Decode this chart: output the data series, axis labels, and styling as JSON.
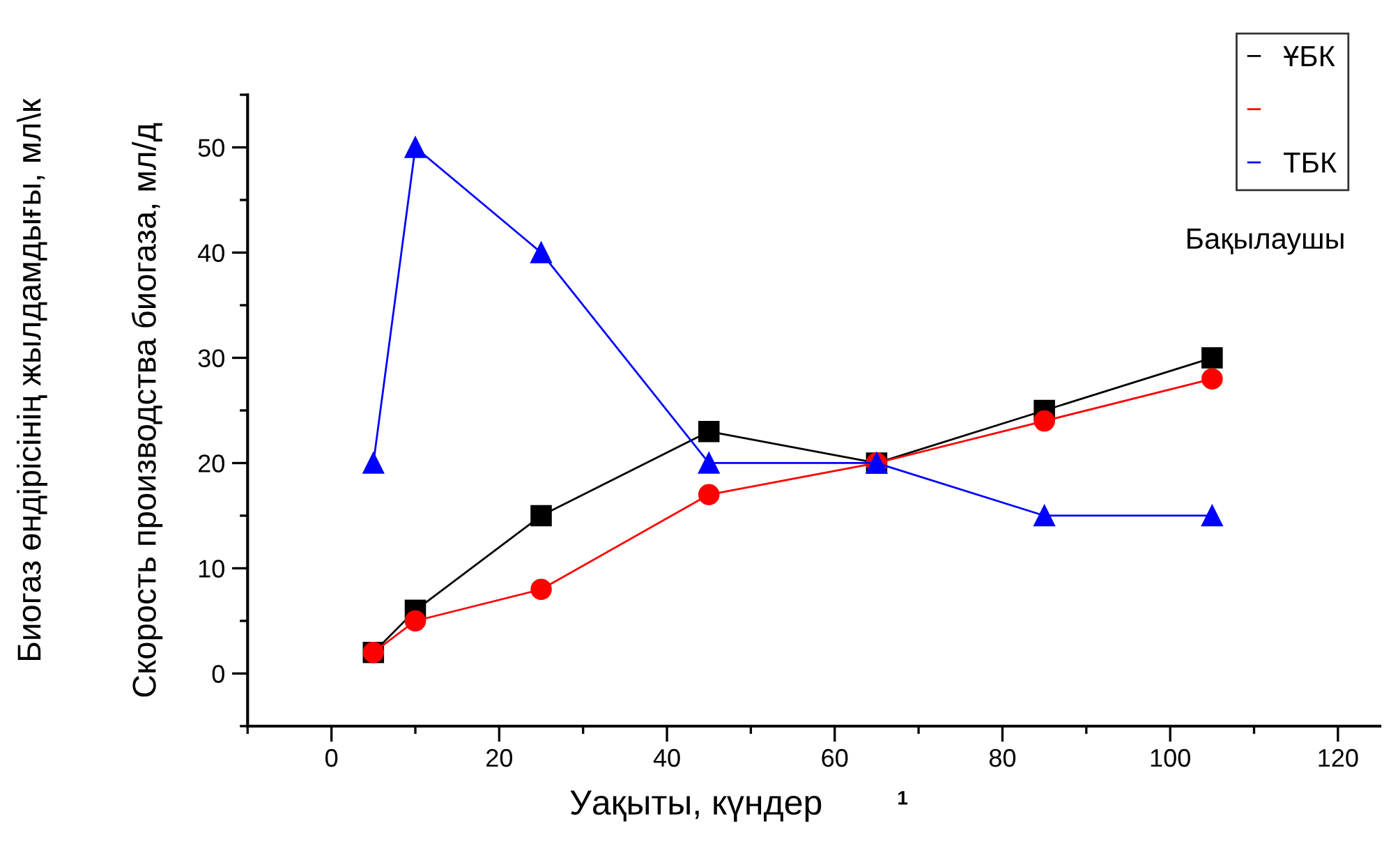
{
  "chart_data": {
    "type": "line",
    "xlabel": "Уақыты, күндер",
    "ylabel": "Скорость производства биогаза, мл/д",
    "annotations": [
      "Биогаз өндірісінің жылдамдығы, мл\\к",
      "Бақылаушы",
      "1"
    ],
    "x": [
      5,
      10,
      25,
      45,
      65,
      85,
      105
    ],
    "series": [
      {
        "name": "ҰБК",
        "color": "#000000",
        "marker": "square",
        "values": [
          2,
          6,
          15,
          23,
          20,
          25,
          30
        ]
      },
      {
        "color": "#ff0000",
        "marker": "circle",
        "values": [
          2,
          5,
          8,
          17,
          20,
          24,
          28
        ]
      },
      {
        "name": "ТБК",
        "color": "#0000ff",
        "marker": "triangle",
        "values": [
          20,
          50,
          40,
          20,
          20,
          15,
          15
        ]
      }
    ],
    "xlim": [
      -10,
      125
    ],
    "ylim": [
      -5,
      55
    ],
    "xticks": [
      0,
      20,
      40,
      60,
      80,
      100,
      120
    ],
    "yticks": [
      0,
      10,
      20,
      30,
      40,
      50
    ],
    "grid": false,
    "legend": "top right",
    "line_style": "solid"
  }
}
